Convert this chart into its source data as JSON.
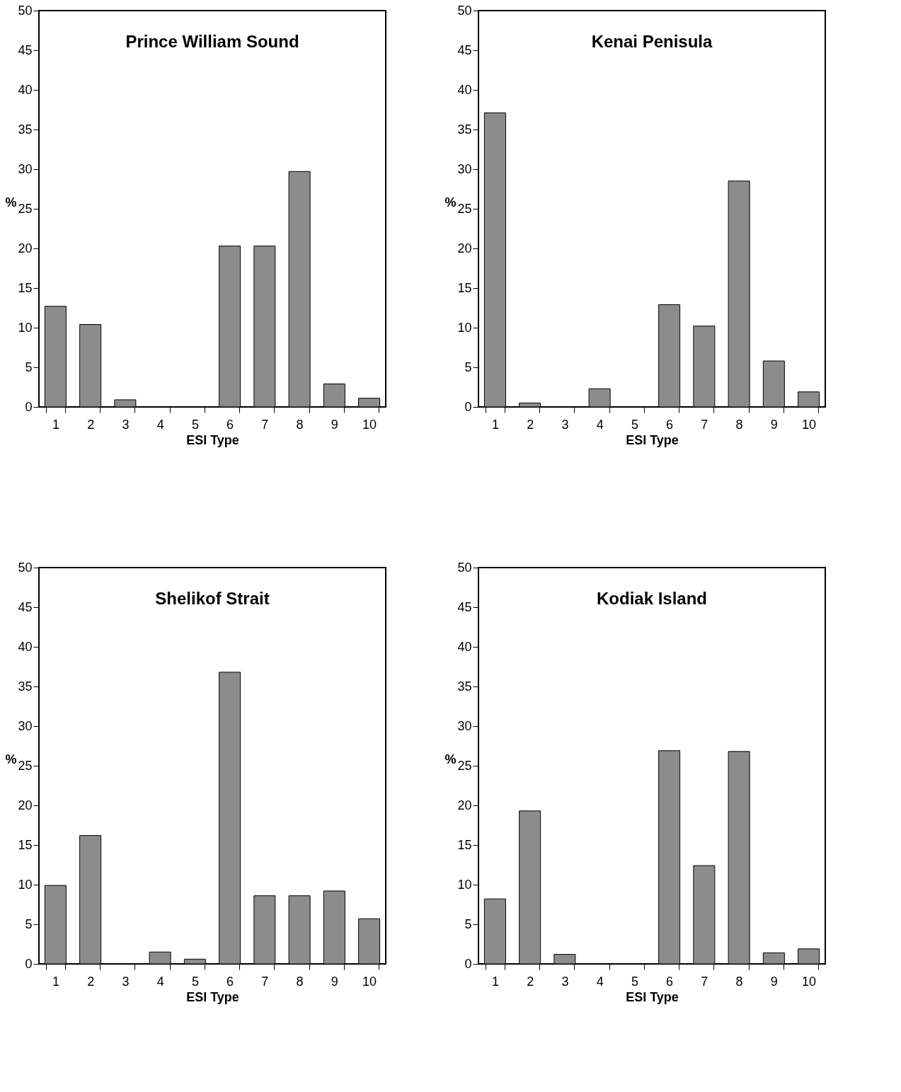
{
  "chart_data": [
    {
      "type": "bar",
      "title": "Prince William Sound",
      "xlabel": "ESI Type",
      "ylabel": "%",
      "categories": [
        "1",
        "2",
        "3",
        "4",
        "5",
        "6",
        "7",
        "8",
        "9",
        "10"
      ],
      "values": [
        12.7,
        10.4,
        0.9,
        0,
        0,
        20.3,
        20.3,
        29.7,
        2.9,
        1.1
      ],
      "color": "#8c8c8c",
      "ylim": [
        0,
        50
      ],
      "yticks": [
        0,
        5,
        10,
        15,
        20,
        25,
        30,
        35,
        40,
        45,
        50
      ],
      "grid": false
    },
    {
      "type": "bar",
      "title": "Kenai Penisula",
      "xlabel": "ESI Type",
      "ylabel": "%",
      "categories": [
        "1",
        "2",
        "3",
        "4",
        "5",
        "6",
        "7",
        "8",
        "9",
        "10"
      ],
      "values": [
        37.1,
        0.5,
        0,
        2.3,
        0,
        12.9,
        10.2,
        28.5,
        5.8,
        1.9
      ],
      "color": "#8c8c8c",
      "ylim": [
        0,
        50
      ],
      "yticks": [
        0,
        5,
        10,
        15,
        20,
        25,
        30,
        35,
        40,
        45,
        50
      ],
      "grid": false
    },
    {
      "type": "bar",
      "title": "Shelikof Strait",
      "xlabel": "ESI Type",
      "ylabel": "%",
      "categories": [
        "1",
        "2",
        "3",
        "4",
        "5",
        "6",
        "7",
        "8",
        "9",
        "10"
      ],
      "values": [
        9.9,
        16.2,
        0,
        1.5,
        0.6,
        36.8,
        8.6,
        8.6,
        9.2,
        5.7
      ],
      "color": "#8c8c8c",
      "ylim": [
        0,
        50
      ],
      "yticks": [
        0,
        5,
        10,
        15,
        20,
        25,
        30,
        35,
        40,
        45,
        50
      ],
      "grid": false
    },
    {
      "type": "bar",
      "title": "Kodiak Island",
      "xlabel": "ESI Type",
      "ylabel": "%",
      "categories": [
        "1",
        "2",
        "3",
        "4",
        "5",
        "6",
        "7",
        "8",
        "9",
        "10"
      ],
      "values": [
        8.2,
        19.3,
        1.2,
        0,
        0,
        26.9,
        12.4,
        26.8,
        1.4,
        1.9
      ],
      "color": "#8c8c8c",
      "ylim": [
        0,
        50
      ],
      "yticks": [
        0,
        5,
        10,
        15,
        20,
        25,
        30,
        35,
        40,
        45,
        50
      ],
      "grid": false
    }
  ]
}
